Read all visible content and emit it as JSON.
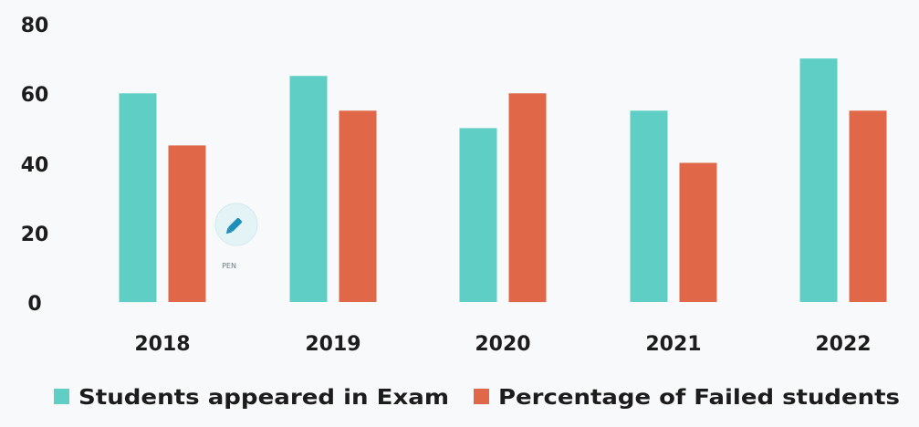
{
  "chart_data": {
    "type": "bar",
    "categories": [
      "2018",
      "2019",
      "2020",
      "2021",
      "2022"
    ],
    "series": [
      {
        "name": "Students appeared in Exam",
        "values": [
          60,
          65,
          50,
          55,
          70
        ],
        "color": "#5fcfc6"
      },
      {
        "name": "Percentage of Failed students",
        "values": [
          45,
          55,
          60,
          40,
          55
        ],
        "color": "#e06748"
      }
    ],
    "y_ticks": [
      "0",
      "20",
      "40",
      "60",
      "80"
    ],
    "ylim": [
      0,
      80
    ],
    "title": "",
    "xlabel": "",
    "ylabel": "",
    "grid": false,
    "legend_position": "bottom"
  },
  "pen_tool": {
    "label": "PEN",
    "icon": "pen-icon"
  }
}
